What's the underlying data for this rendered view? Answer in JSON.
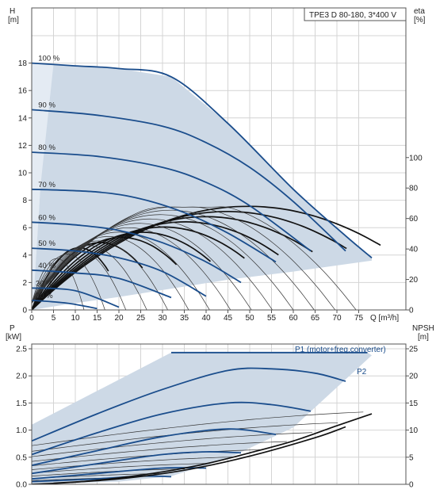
{
  "title": "TPE3 D 80-180, 3*400 V",
  "chart_data": [
    {
      "type": "line",
      "name": "head-and-efficiency",
      "y_axis_label": [
        "H",
        "[m]"
      ],
      "y2_axis_label": [
        "eta",
        "[%]"
      ],
      "x_axis_label": "Q [m³/h]",
      "xlim": [
        0,
        80
      ],
      "ylim": [
        0,
        20
      ],
      "y2lim": [
        0,
        180
      ],
      "x_ticks": [
        0,
        5,
        10,
        15,
        20,
        25,
        30,
        35,
        40,
        45,
        50,
        55,
        60,
        65,
        70,
        75
      ],
      "y_ticks": [
        0,
        2,
        4,
        6,
        8,
        10,
        12,
        14,
        16,
        18
      ],
      "y2_ticks": [
        0,
        20,
        40,
        60,
        80,
        100
      ],
      "grid": true,
      "speed_labels": [
        "100 %",
        "90 %",
        "80 %",
        "70 %",
        "60 %",
        "50 %",
        "40 %",
        "30 %",
        "20 %"
      ],
      "speed_curves": [
        {
          "label": "100 %",
          "x": [
            0,
            10,
            20,
            32,
            45,
            60,
            72,
            78
          ],
          "y": [
            18,
            17.8,
            17.6,
            17.0,
            13.6,
            8.8,
            5.4,
            3.8
          ]
        },
        {
          "label": "90 %",
          "x": [
            0,
            15,
            30,
            40,
            50,
            60,
            72
          ],
          "y": [
            14.6,
            14.2,
            13.4,
            12.2,
            10.4,
            7.9,
            4.3
          ]
        },
        {
          "label": "80 %",
          "x": [
            0,
            15,
            30,
            40,
            50,
            64
          ],
          "y": [
            11.5,
            11.2,
            10.4,
            9.3,
            7.6,
            4.3
          ]
        },
        {
          "label": "70 %",
          "x": [
            0,
            15,
            25,
            35,
            45,
            56
          ],
          "y": [
            8.8,
            8.6,
            8.1,
            7.1,
            5.6,
            3.5
          ]
        },
        {
          "label": "60 %",
          "x": [
            0,
            10,
            20,
            30,
            40,
            48
          ],
          "y": [
            6.4,
            6.2,
            5.8,
            4.9,
            3.5,
            2.0
          ]
        },
        {
          "label": "50 %",
          "x": [
            0,
            10,
            20,
            30,
            40
          ],
          "y": [
            4.5,
            4.3,
            3.8,
            2.8,
            1.0
          ]
        },
        {
          "label": "40 %",
          "x": [
            0,
            10,
            20,
            32
          ],
          "y": [
            2.9,
            2.7,
            2.3,
            0.9
          ]
        },
        {
          "label": "30 %",
          "x": [
            0,
            10,
            20
          ],
          "y": [
            1.6,
            1.4,
            0.2
          ]
        },
        {
          "label": "20 %",
          "x": [
            0,
            8,
            15
          ],
          "y": [
            0.7,
            0.5,
            0.1
          ]
        }
      ],
      "max_eta_percent": 68
    },
    {
      "type": "line",
      "name": "power-and-npsh",
      "y_axis_label": [
        "P",
        "[kW]"
      ],
      "y2_axis_label": [
        "NPSH",
        "[m]"
      ],
      "ylim": [
        0,
        2.7
      ],
      "y2lim": [
        0,
        27
      ],
      "y_ticks": [
        0,
        0.5,
        1.0,
        1.5,
        2.0,
        2.5
      ],
      "y_tick_labels": [
        "0.0",
        "0.5",
        "1.0",
        "1.5",
        "2.0",
        "2.5"
      ],
      "y2_ticks": [
        0,
        5,
        10,
        15,
        20,
        25
      ],
      "grid": true,
      "legend_entries": [
        "P1 (motor+freq.converter)",
        "P2"
      ],
      "p1_limit_kw": 2.43,
      "p2_curves": [
        {
          "x": [
            0,
            15,
            30,
            45,
            55,
            65,
            72
          ],
          "y": [
            0.8,
            1.3,
            1.75,
            2.1,
            2.13,
            2.05,
            1.9
          ]
        },
        {
          "x": [
            0,
            15,
            30,
            45,
            55,
            64
          ],
          "y": [
            0.55,
            0.95,
            1.3,
            1.5,
            1.47,
            1.35
          ]
        },
        {
          "x": [
            0,
            15,
            30,
            45,
            56
          ],
          "y": [
            0.35,
            0.62,
            0.88,
            1.02,
            0.92
          ]
        },
        {
          "x": [
            0,
            15,
            30,
            40,
            48
          ],
          "y": [
            0.2,
            0.38,
            0.55,
            0.6,
            0.58
          ]
        },
        {
          "x": [
            0,
            15,
            30,
            40
          ],
          "y": [
            0.1,
            0.2,
            0.3,
            0.3
          ]
        },
        {
          "x": [
            0,
            15,
            25,
            32
          ],
          "y": [
            0.05,
            0.1,
            0.15,
            0.14
          ]
        }
      ],
      "npsh": {
        "x": [
          0,
          10,
          20,
          30,
          40,
          50,
          60,
          70,
          78
        ],
        "y": [
          0,
          0.4,
          1.2,
          2.3,
          3.8,
          5.8,
          8.0,
          10.8,
          13.0
        ]
      }
    }
  ]
}
